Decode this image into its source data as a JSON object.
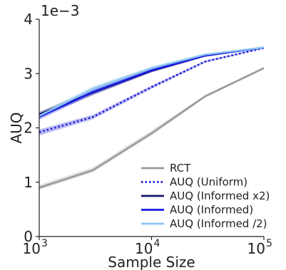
{
  "chart_data": {
    "type": "line",
    "xlabel": "Sample Size",
    "ylabel": "AUQ",
    "y_scale_label": "1e−3",
    "x_scale": "log",
    "xlim": [
      1000,
      100000
    ],
    "ylim": [
      0,
      4
    ],
    "x_ticks": [
      {
        "value": 1000,
        "base": "10",
        "exp": "3"
      },
      {
        "value": 10000,
        "base": "10",
        "exp": "4"
      },
      {
        "value": 100000,
        "base": "10",
        "exp": "5"
      }
    ],
    "y_ticks": [
      {
        "value": 0,
        "label": "0"
      },
      {
        "value": 1,
        "label": "1"
      },
      {
        "value": 2,
        "label": "2"
      },
      {
        "value": 3,
        "label": "3"
      },
      {
        "value": 4,
        "label": "4"
      }
    ],
    "x": [
      1000,
      3000,
      10000,
      30000,
      100000
    ],
    "grid": false,
    "legend_position": "lower-right",
    "series": [
      {
        "name": "RCT",
        "color": "#999999",
        "style": "solid",
        "values": [
          0.9,
          1.22,
          1.9,
          2.58,
          3.1
        ],
        "lower": [
          0.86,
          1.18,
          1.86,
          2.56,
          3.08
        ],
        "upper": [
          0.95,
          1.27,
          1.95,
          2.61,
          3.12
        ]
      },
      {
        "name": "AUQ (Uniform)",
        "color": "#1a1adb",
        "style": "dotted",
        "values": [
          1.92,
          2.2,
          2.75,
          3.22,
          3.47
        ],
        "lower": [
          1.86,
          2.16,
          2.72,
          3.2,
          3.46
        ],
        "upper": [
          1.97,
          2.24,
          2.78,
          3.24,
          3.48
        ]
      },
      {
        "name": "AUQ (Informed x2)",
        "color": "#14146b",
        "style": "solid",
        "values": [
          2.25,
          2.65,
          3.05,
          3.33,
          3.48
        ],
        "lower": [
          2.2,
          2.6,
          3.02,
          3.31,
          3.47
        ],
        "upper": [
          2.3,
          2.7,
          3.08,
          3.35,
          3.49
        ]
      },
      {
        "name": "AUQ (Informed)",
        "color": "#1a1ae6",
        "style": "solid",
        "values": [
          2.2,
          2.66,
          3.06,
          3.33,
          3.48
        ],
        "lower": [
          2.15,
          2.61,
          3.03,
          3.31,
          3.47
        ],
        "upper": [
          2.25,
          2.71,
          3.09,
          3.35,
          3.49
        ]
      },
      {
        "name": "AUQ (Informed /2)",
        "color": "#8cc4f2",
        "style": "solid",
        "values": [
          2.22,
          2.72,
          3.1,
          3.35,
          3.48
        ],
        "lower": [
          2.17,
          2.67,
          3.07,
          3.33,
          3.47
        ],
        "upper": [
          2.27,
          2.77,
          3.13,
          3.37,
          3.49
        ]
      }
    ]
  }
}
